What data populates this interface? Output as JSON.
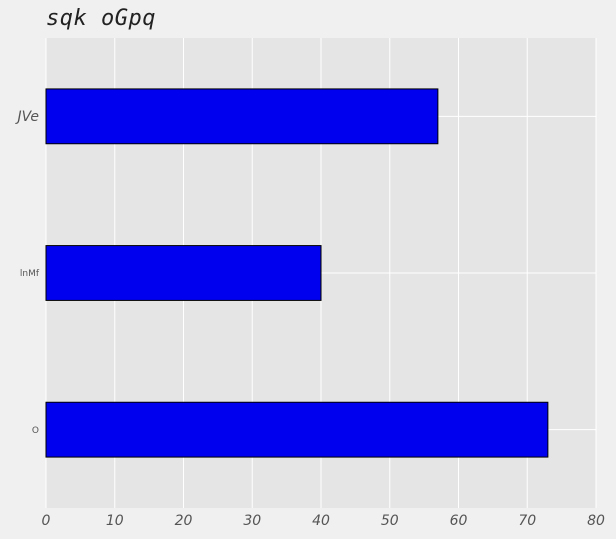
{
  "chart_data": {
    "type": "bar",
    "orientation": "horizontal",
    "title": "sqk oGpq",
    "xlabel": "",
    "ylabel": "",
    "categories": [
      "JVe",
      "lnMf",
      "O"
    ],
    "values": [
      57,
      40,
      73
    ],
    "xlim": [
      0,
      80
    ],
    "xticks": [
      0,
      10,
      20,
      30,
      40,
      50,
      60,
      70,
      80
    ],
    "grid": true,
    "legend": "none"
  },
  "colors": {
    "bar_fill": "#0000ee",
    "bar_edge": "#000000",
    "plot_background": "#e5e5e5",
    "grid": "#ffffff",
    "figure_background": "#f0f0f0"
  }
}
